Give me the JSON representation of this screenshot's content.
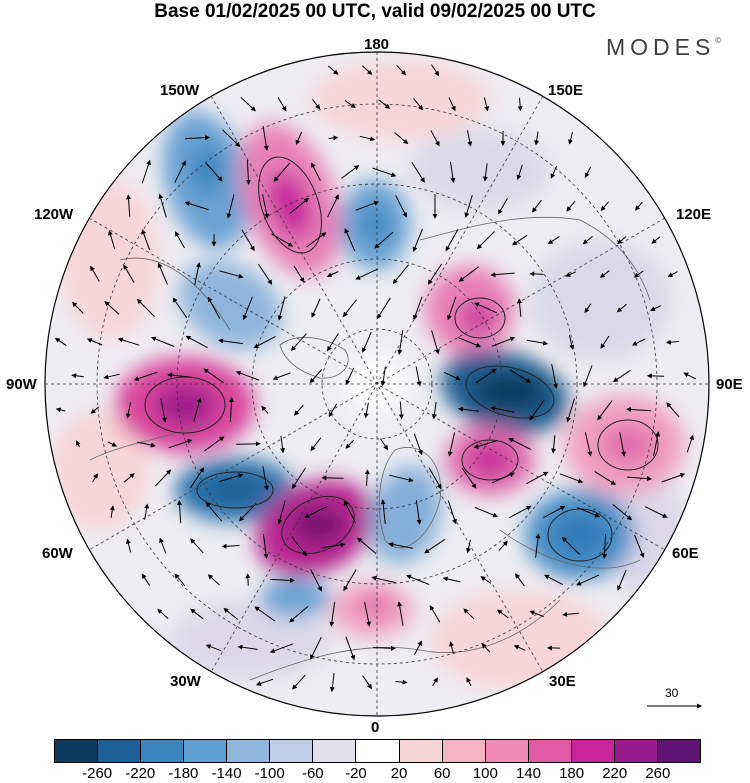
{
  "title": "Base 01/02/2025 00 UTC, valid 09/02/2025 00 UTC",
  "logo": "MODES",
  "logo_mark": "©",
  "longitude_labels": {
    "top": "180",
    "bottom": "0",
    "left": "90W",
    "right": "90E",
    "upper_left_1": "150W",
    "upper_left_2": "120W",
    "lower_left_1": "60W",
    "lower_left_2": "30W",
    "upper_right_1": "150E",
    "upper_right_2": "120E",
    "lower_right_1": "60E",
    "lower_right_2": "30E"
  },
  "reference_vector": {
    "label": "30"
  },
  "colorbar": {
    "colors": [
      "#0d3a5c",
      "#1d5f96",
      "#3a85c0",
      "#5fa0cf",
      "#90b8dc",
      "#c0cde6",
      "#e3e0ee",
      "#ffffff",
      "#f8d6d8",
      "#f5b3c3",
      "#ef8ab5",
      "#e25aa6",
      "#c8259c",
      "#971a8c",
      "#5d136f"
    ],
    "ticks": [
      "-260",
      "-220",
      "-180",
      "-140",
      "-100",
      "-60",
      "-20",
      "20",
      "60",
      "100",
      "140",
      "180",
      "220",
      "260"
    ]
  },
  "anomaly_centers": [
    {
      "name": "blob-150w-negative",
      "value": -150,
      "color": "#6aa3d3"
    },
    {
      "name": "blob-150w-positive",
      "value": 160,
      "color": "#e880b8"
    },
    {
      "name": "blob-180-negative",
      "value": -140,
      "color": "#6aa3d3"
    },
    {
      "name": "blob-120w-negative",
      "value": -110,
      "color": "#8fb5dc"
    },
    {
      "name": "blob-90w-positive",
      "value": 200,
      "color": "#d9449e"
    },
    {
      "name": "blob-70w-negative",
      "value": -200,
      "color": "#2c72ac"
    },
    {
      "name": "blob-40w-positive",
      "value": 230,
      "color": "#b82790"
    },
    {
      "name": "blob-siberia-positive",
      "value": 150,
      "color": "#e880b8"
    },
    {
      "name": "blob-90e-negative",
      "value": -250,
      "color": "#1a5c8f"
    },
    {
      "name": "blob-60e-positive",
      "value": 170,
      "color": "#e06cae"
    },
    {
      "name": "blob-100e-positive",
      "value": 120,
      "color": "#f09fc0"
    },
    {
      "name": "blob-50e-negative",
      "value": -170,
      "color": "#4a8fc6"
    },
    {
      "name": "blob-20w-negative",
      "value": -140,
      "color": "#6aa3d3"
    },
    {
      "name": "blob-10e-positive",
      "value": 110,
      "color": "#f2a5c2"
    },
    {
      "name": "blob-greenland-negative",
      "value": -120,
      "color": "#84afd8"
    }
  ]
}
